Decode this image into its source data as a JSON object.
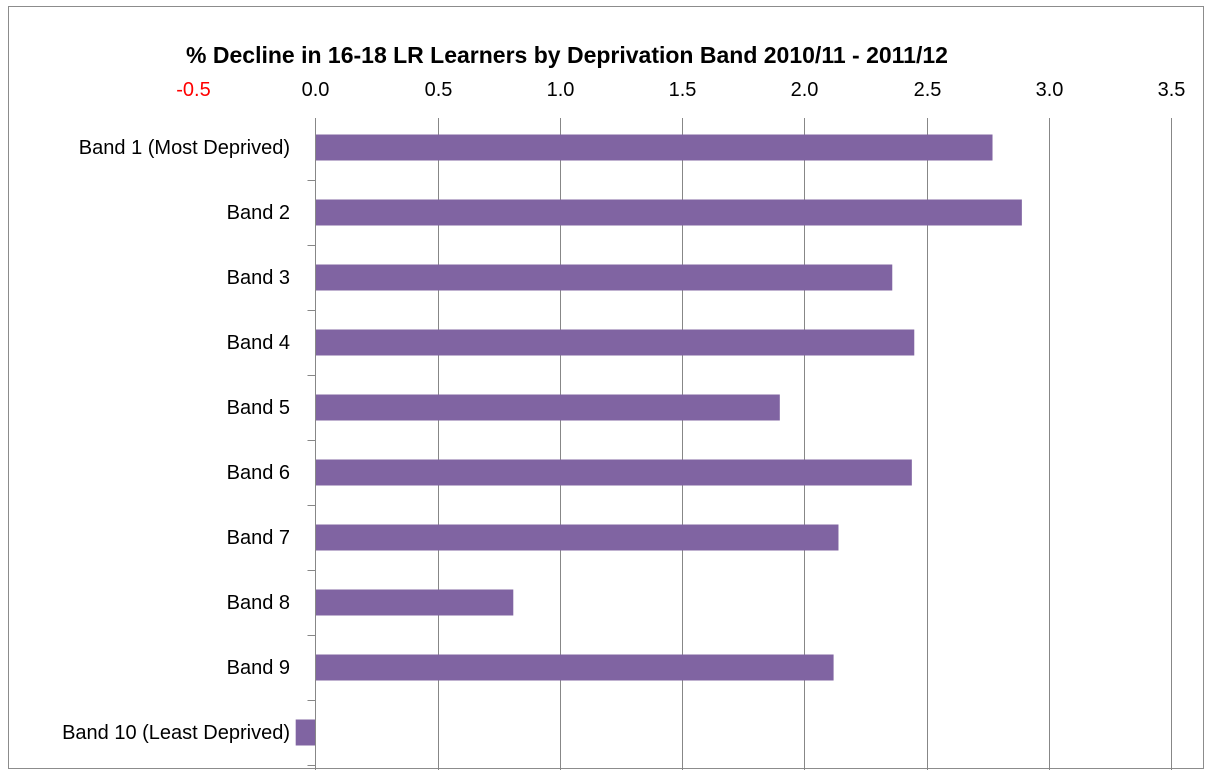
{
  "chart_data": {
    "type": "bar",
    "orientation": "horizontal",
    "title": "% Decline in 16-18 LR Learners by Deprivation Band 2010/11 - 2011/12",
    "xlabel": "",
    "ylabel": "",
    "xlim": [
      -0.5,
      3.5
    ],
    "x_ticks": [
      "-0.5",
      "0.0",
      "0.5",
      "1.0",
      "1.5",
      "2.0",
      "2.5",
      "3.0",
      "3.5"
    ],
    "x_tick_values": [
      -0.5,
      0.0,
      0.5,
      1.0,
      1.5,
      2.0,
      2.5,
      3.0,
      3.5
    ],
    "x_axis_position": "top",
    "grid": "vertical",
    "legend": "none",
    "categories": [
      "Band 1 (Most Deprived)",
      "Band 2",
      "Band 3",
      "Band 4",
      "Band 5",
      "Band 6",
      "Band 7",
      "Band 8",
      "Band 9",
      "Band 10 (Least Deprived)"
    ],
    "series": [
      {
        "values": [
          2.77,
          2.89,
          2.36,
          2.45,
          1.9,
          2.44,
          2.14,
          0.81,
          2.12,
          -0.08
        ]
      }
    ],
    "colors": {
      "bar": "#8064A2",
      "negative_tick": "#FF0000",
      "tick": "#000000",
      "gridline": "#878787",
      "frame": "#8C8C8C"
    }
  }
}
